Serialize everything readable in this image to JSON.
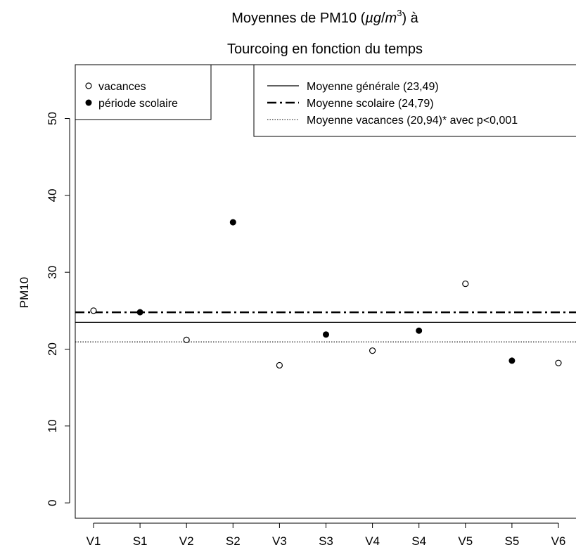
{
  "chart_data": {
    "type": "scatter",
    "title_line1_prefix": "Moyennes de PM10 (",
    "title_unit_base": "µg",
    "title_unit_sep": "/",
    "title_unit_m": "m",
    "title_unit_exp": "3",
    "title_line1_suffix": ") à",
    "title_line2": "Tourcoing en fonction du temps",
    "xlabel": "",
    "ylabel": "PM10",
    "categories": [
      "V1",
      "S1",
      "V2",
      "S2",
      "V3",
      "S3",
      "V4",
      "S4",
      "V5",
      "S5",
      "V6"
    ],
    "values": [
      25.0,
      24.8,
      21.2,
      36.5,
      17.9,
      21.9,
      19.8,
      22.4,
      28.5,
      18.5,
      18.2
    ],
    "groups": [
      "vacances",
      "scolaire",
      "vacances",
      "scolaire",
      "vacances",
      "scolaire",
      "vacances",
      "scolaire",
      "vacances",
      "scolaire",
      "vacances"
    ],
    "ylim": [
      -2,
      57
    ],
    "yticks": [
      0,
      10,
      20,
      30,
      40,
      50
    ],
    "reference_lines": [
      {
        "label": "Moyenne générale (23,49)",
        "value": 23.49,
        "style": "solid"
      },
      {
        "label": "Moyenne scolaire (24,79)",
        "value": 24.79,
        "style": "dashdot"
      },
      {
        "label": "Moyenne vacances (20,94)* avec p<0,001",
        "value": 20.94,
        "style": "dotted"
      }
    ],
    "point_legend": [
      {
        "label": "vacances",
        "marker": "open-circle"
      },
      {
        "label": "période scolaire",
        "marker": "filled-circle"
      }
    ],
    "legend_placement": [
      "top-left",
      "top-right"
    ],
    "grid": false,
    "colors": {
      "axis": "#000000",
      "points": "#000000",
      "background": "#ffffff"
    }
  }
}
